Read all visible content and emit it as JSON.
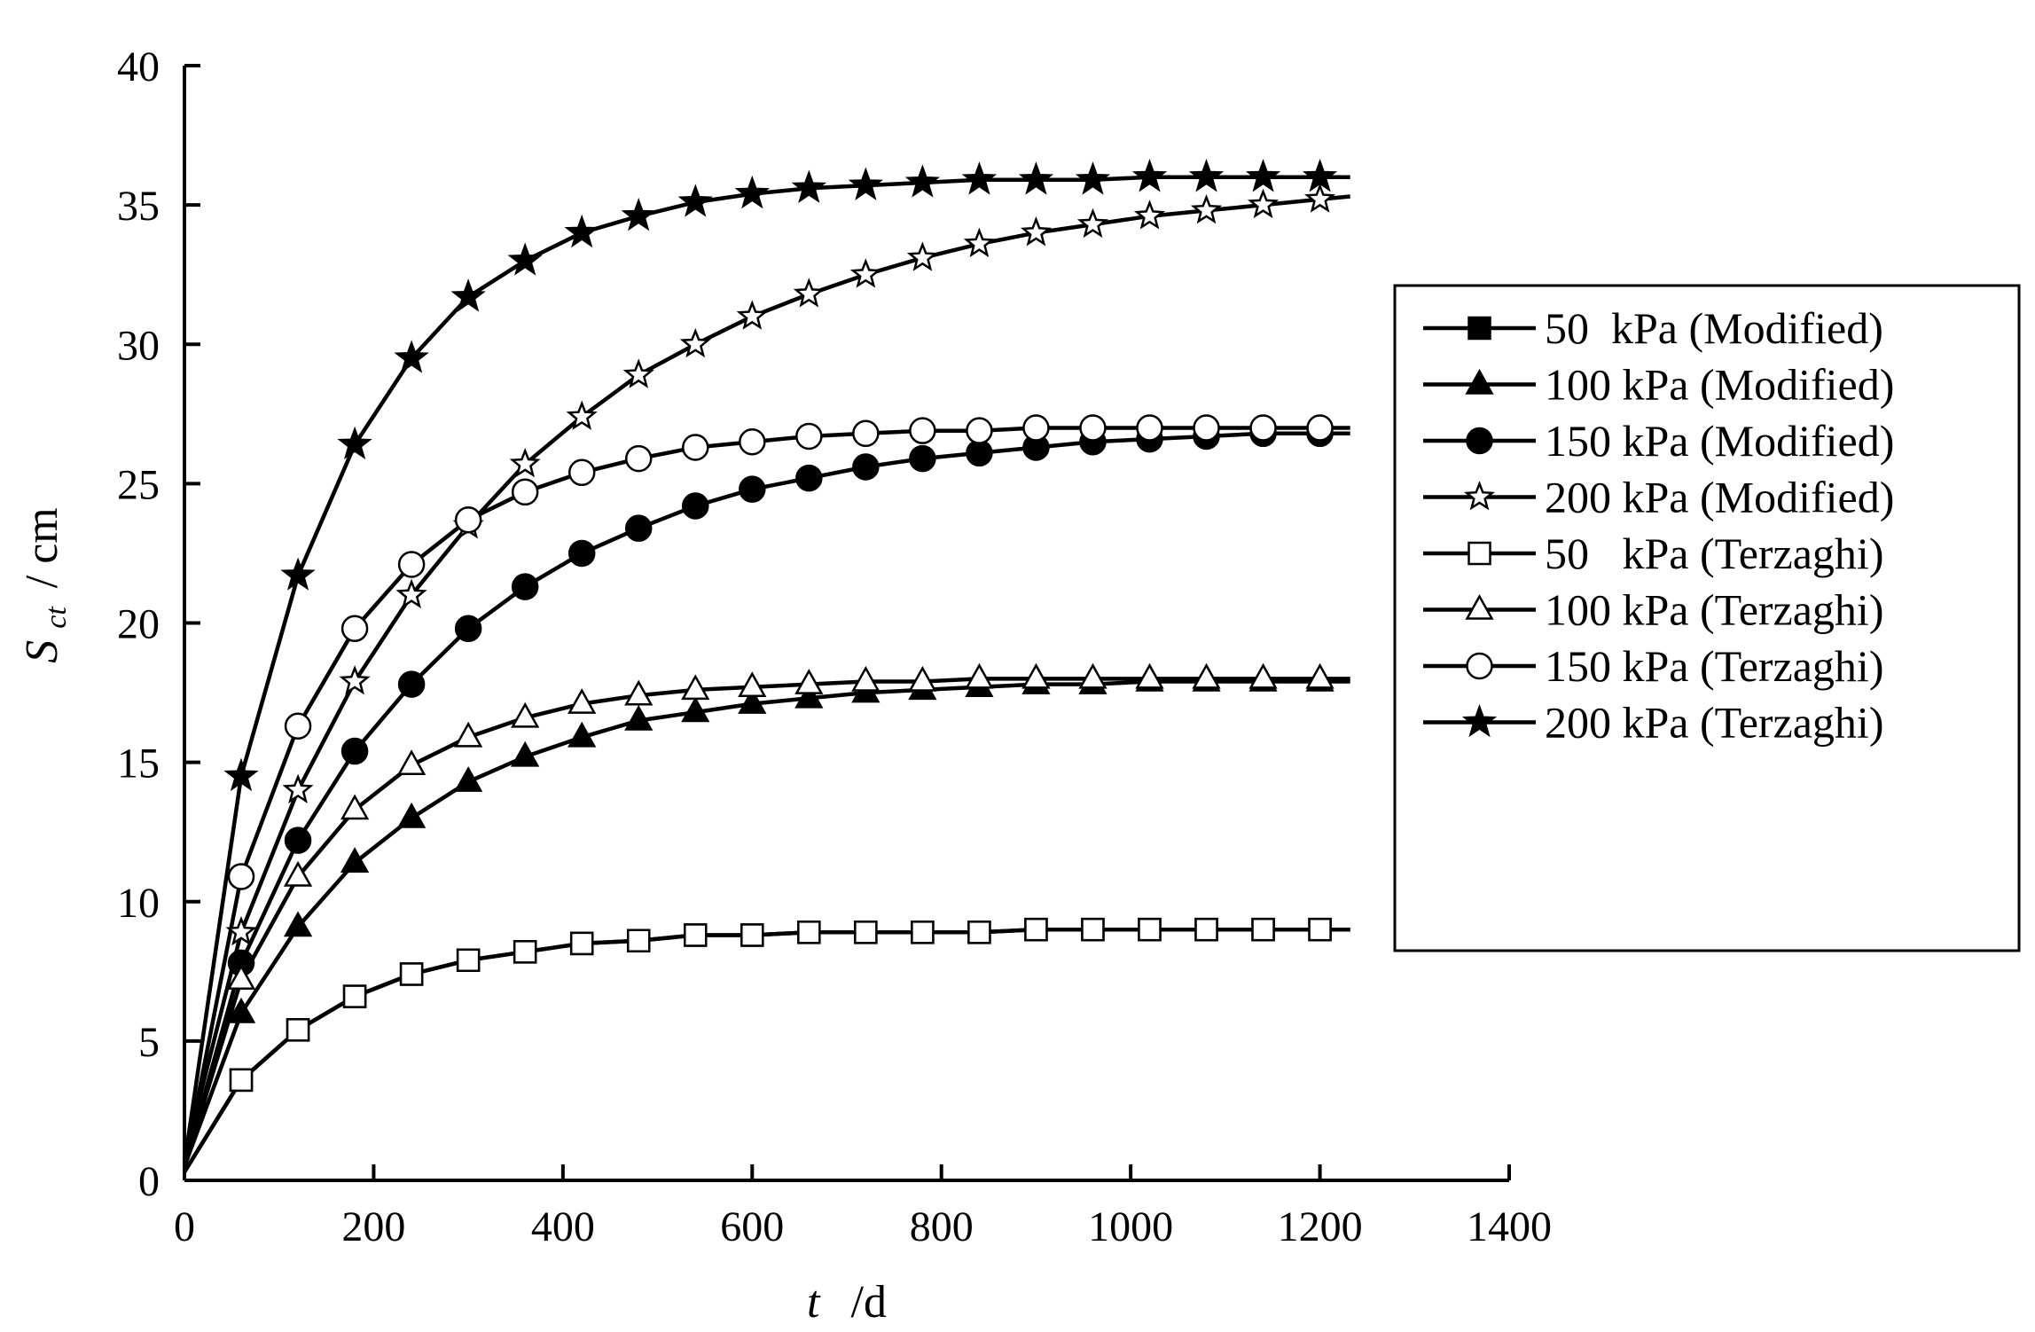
{
  "chart_data": {
    "type": "line",
    "title": "",
    "xlabel_main": "t",
    "xlabel_unit": "/d",
    "ylabel_main": "S",
    "ylabel_sub": "ct",
    "ylabel_unit": "/ cm",
    "xlim": [
      0,
      1400
    ],
    "ylim": [
      0,
      40
    ],
    "xticks": [
      0,
      200,
      400,
      600,
      800,
      1000,
      1200,
      1400
    ],
    "yticks": [
      0,
      5,
      10,
      15,
      20,
      25,
      30,
      35,
      40
    ],
    "grid": false,
    "legend_position": "right",
    "line_color": "#000000",
    "x": [
      0,
      60,
      120,
      180,
      240,
      300,
      360,
      420,
      480,
      540,
      600,
      660,
      720,
      780,
      840,
      900,
      960,
      1020,
      1080,
      1140,
      1200
    ],
    "series": [
      {
        "name": "50  kPa (Modified)",
        "marker": "square-filled",
        "values": [
          0.3,
          3.6,
          5.4,
          6.6,
          7.4,
          7.9,
          8.2,
          8.5,
          8.6,
          8.8,
          8.8,
          8.9,
          8.9,
          8.9,
          8.9,
          9.0,
          9.0,
          9.0,
          9.0,
          9.0,
          9.0
        ]
      },
      {
        "name": "100 kPa (Modified)",
        "marker": "triangle-filled",
        "values": [
          0.5,
          6.0,
          9.1,
          11.4,
          13.0,
          14.3,
          15.2,
          15.9,
          16.5,
          16.8,
          17.1,
          17.3,
          17.5,
          17.6,
          17.7,
          17.8,
          17.8,
          17.9,
          17.9,
          17.9,
          17.9
        ]
      },
      {
        "name": "150 kPa (Modified)",
        "marker": "circle-filled",
        "values": [
          0.5,
          7.8,
          12.2,
          15.4,
          17.8,
          19.8,
          21.3,
          22.5,
          23.4,
          24.2,
          24.8,
          25.2,
          25.6,
          25.9,
          26.1,
          26.3,
          26.5,
          26.6,
          26.7,
          26.8,
          26.8
        ]
      },
      {
        "name": "200 kPa (Modified)",
        "marker": "star-open",
        "values": [
          0.8,
          8.9,
          14.0,
          17.9,
          21.0,
          23.5,
          25.7,
          27.4,
          28.9,
          30.0,
          31.0,
          31.8,
          32.5,
          33.1,
          33.6,
          34.0,
          34.3,
          34.6,
          34.8,
          35.0,
          35.2
        ]
      },
      {
        "name": "50   kPa (Terzaghi)",
        "marker": "square-open",
        "values": [
          0.3,
          3.6,
          5.4,
          6.6,
          7.4,
          7.9,
          8.2,
          8.5,
          8.6,
          8.8,
          8.8,
          8.9,
          8.9,
          8.9,
          8.9,
          9.0,
          9.0,
          9.0,
          9.0,
          9.0,
          9.0
        ]
      },
      {
        "name": "100 kPa (Terzaghi)",
        "marker": "triangle-open",
        "values": [
          0.5,
          7.2,
          10.9,
          13.3,
          14.9,
          15.9,
          16.6,
          17.1,
          17.4,
          17.6,
          17.7,
          17.8,
          17.9,
          17.9,
          18.0,
          18.0,
          18.0,
          18.0,
          18.0,
          18.0,
          18.0
        ]
      },
      {
        "name": "150 kPa (Terzaghi)",
        "marker": "circle-open",
        "values": [
          0.5,
          10.9,
          16.3,
          19.8,
          22.1,
          23.7,
          24.7,
          25.4,
          25.9,
          26.3,
          26.5,
          26.7,
          26.8,
          26.9,
          26.9,
          27.0,
          27.0,
          27.0,
          27.0,
          27.0,
          27.0
        ]
      },
      {
        "name": "200 kPa (Terzaghi)",
        "marker": "star-filled",
        "values": [
          0.6,
          14.5,
          21.7,
          26.4,
          29.5,
          31.7,
          33.0,
          34.0,
          34.6,
          35.1,
          35.4,
          35.6,
          35.7,
          35.8,
          35.9,
          35.9,
          35.9,
          36.0,
          36.0,
          36.0,
          36.0
        ]
      }
    ]
  }
}
